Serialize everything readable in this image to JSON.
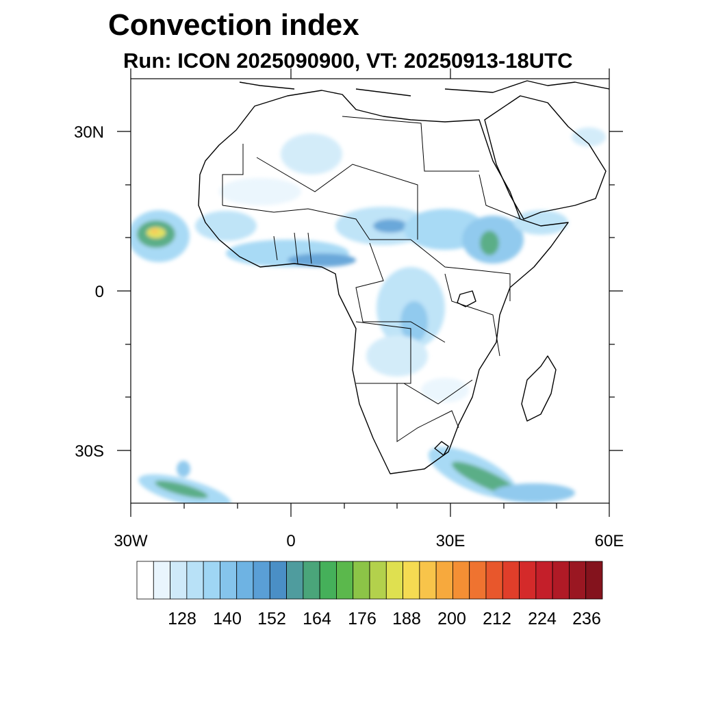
{
  "title": "Convection index",
  "subtitle": "Run: ICON 2025090900,  VT: 20250913-18UTC",
  "axes": {
    "x_ticks": [
      "30W",
      "0",
      "30E",
      "60E"
    ],
    "y_ticks": [
      "30N",
      "0",
      "30S"
    ]
  },
  "colorbar": {
    "labels": [
      "128",
      "140",
      "152",
      "164",
      "176",
      "188",
      "200",
      "212",
      "224",
      "236"
    ],
    "colors": [
      "#ffffff",
      "#e9f5fd",
      "#cfeaf9",
      "#b8e1f7",
      "#9fd6f4",
      "#85c4ec",
      "#6eb3e3",
      "#5a9fd6",
      "#4a8fc6",
      "#4f9c9e",
      "#4aa57a",
      "#45b05a",
      "#5bb84c",
      "#8cc447",
      "#b3d14c",
      "#dfe050",
      "#f5db52",
      "#f8c44a",
      "#f7a93d",
      "#f48f34",
      "#ef7330",
      "#e8572c",
      "#e03e2a",
      "#d42a2a",
      "#c41f2a",
      "#b01a26",
      "#9a1722",
      "#84131d"
    ],
    "levels": [
      116,
      120,
      124,
      128,
      132,
      136,
      140,
      144,
      148,
      152,
      156,
      160,
      164,
      168,
      172,
      176,
      180,
      184,
      188,
      192,
      196,
      200,
      204,
      208,
      212,
      216,
      220,
      224,
      228,
      232,
      236,
      240
    ]
  }
}
